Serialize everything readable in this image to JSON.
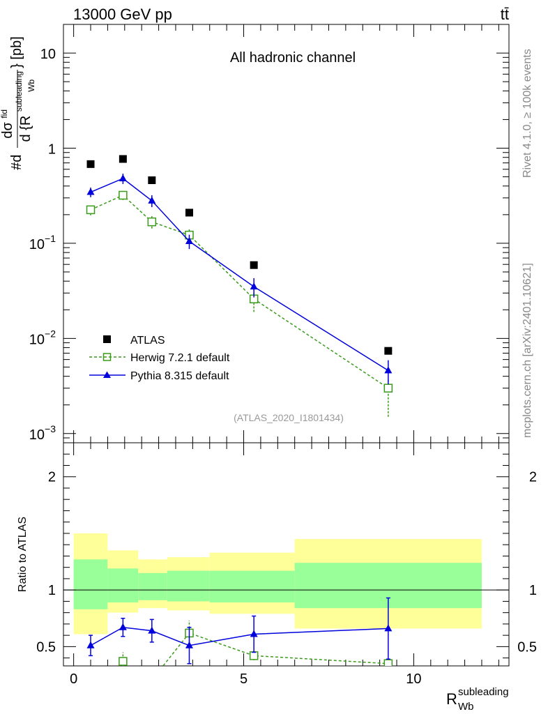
{
  "header": {
    "energy_label": "13000 GeV pp",
    "process_label": "tt̄"
  },
  "side_labels": {
    "rivet": "Rivet 4.1.0, ≥ 100k events",
    "mcplots": "mcplots.cern.ch [arXiv:2401.10621]"
  },
  "colors": {
    "data": "#000000",
    "herwig": "#3a9a1a",
    "pythia": "#0000dd",
    "band_inner": "#99ff99",
    "band_outer": "#ffff99"
  },
  "chart_data": [
    {
      "type": "scatter",
      "title": "All hadronic channel",
      "analysis_tag": "(ATLAS_2020_I1801434)",
      "ylabel": {
        "prefix": "#d",
        "num": "dσ",
        "num_sup": "fid",
        "den": "d {R",
        "den_sup": "subleading",
        "den_sub": "Wb",
        "unit": "} [pb]"
      },
      "yscale": "log",
      "ylim": [
        0.0008,
        20
      ],
      "xlim": [
        -0.3,
        12.8
      ],
      "y_tick_labels": [
        {
          "base": "10",
          "exp": "−3",
          "value": 0.001
        },
        {
          "base": "10",
          "exp": "−2",
          "value": 0.01
        },
        {
          "base": "10",
          "exp": "−1",
          "value": 0.1
        },
        {
          "base": "1",
          "exp": "",
          "value": 1
        },
        {
          "base": "10",
          "exp": "",
          "value": 10
        }
      ],
      "legend": {
        "placement": "bottom-left",
        "entries": [
          "ATLAS",
          "Herwig 7.2.1 default",
          "Pythia 8.315 default"
        ]
      },
      "series": [
        {
          "name": "ATLAS",
          "x": [
            0.5,
            1.45,
            2.3,
            3.4,
            5.3,
            9.25
          ],
          "y": [
            0.68,
            0.77,
            0.46,
            0.21,
            0.059,
            0.0074
          ]
        },
        {
          "name": "Herwig 7.2.1 default",
          "x": [
            0.5,
            1.45,
            2.3,
            3.4,
            5.3,
            9.25
          ],
          "y": [
            0.225,
            0.32,
            0.168,
            0.122,
            0.026,
            0.003
          ],
          "err_lo": [
            0.028,
            0.035,
            0.025,
            0.018,
            0.007,
            0.0015
          ],
          "err_hi": [
            0.028,
            0.035,
            0.025,
            0.018,
            0.007,
            0.0008
          ]
        },
        {
          "name": "Pythia 8.315 default",
          "x": [
            0.5,
            1.45,
            2.3,
            3.4,
            5.3,
            9.25
          ],
          "y": [
            0.345,
            0.48,
            0.28,
            0.105,
            0.035,
            0.0046
          ],
          "err_lo": [
            0.04,
            0.06,
            0.04,
            0.018,
            0.008,
            0.0013
          ],
          "err_hi": [
            0.04,
            0.06,
            0.04,
            0.018,
            0.008,
            0.0013
          ]
        }
      ]
    },
    {
      "type": "scatter",
      "ylabel": "Ratio to ATLAS",
      "xlabel": {
        "base": "R",
        "sup": "subleading",
        "sub": "Wb"
      },
      "ylim": [
        0.33,
        2.3
      ],
      "xlim": [
        -0.3,
        12.8
      ],
      "x_tick_labels": [
        {
          "label": "0",
          "value": 0
        },
        {
          "label": "5",
          "value": 5
        },
        {
          "label": "10",
          "value": 10
        }
      ],
      "y_tick_labels": [
        {
          "label": "0.5",
          "value": 0.5
        },
        {
          "label": "1",
          "value": 1
        },
        {
          "label": "2",
          "value": 2
        }
      ],
      "bands": [
        {
          "x0": 0.0,
          "x1": 1.0,
          "inner": [
            0.83,
            1.27
          ],
          "outer": [
            0.61,
            1.5
          ]
        },
        {
          "x0": 1.0,
          "x1": 1.9,
          "inner": [
            0.89,
            1.19
          ],
          "outer": [
            0.8,
            1.35
          ]
        },
        {
          "x0": 1.9,
          "x1": 2.75,
          "inner": [
            0.91,
            1.15
          ],
          "outer": [
            0.84,
            1.27
          ]
        },
        {
          "x0": 2.75,
          "x1": 4.0,
          "inner": [
            0.9,
            1.17
          ],
          "outer": [
            0.82,
            1.29
          ]
        },
        {
          "x0": 4.0,
          "x1": 6.5,
          "inner": [
            0.89,
            1.17
          ],
          "outer": [
            0.79,
            1.33
          ]
        },
        {
          "x0": 6.5,
          "x1": 12.0,
          "inner": [
            0.84,
            1.24
          ],
          "outer": [
            0.66,
            1.45
          ]
        }
      ],
      "series": [
        {
          "name": "Herwig 7.2.1 default",
          "x": [
            1.45,
            3.4,
            5.3,
            9.25
          ],
          "y": [
            0.37,
            0.62,
            0.42,
            0.35
          ],
          "err": [
            0.08,
            0.11,
            0.04,
            0.02
          ],
          "line_from": [
            1.25,
            0.28
          ],
          "line_from_end": [
            2.55,
            0.3
          ]
        },
        {
          "name": "Pythia 8.315 default",
          "x": [
            0.5,
            1.45,
            2.3,
            3.4,
            5.3,
            9.25
          ],
          "y": [
            0.51,
            0.67,
            0.64,
            0.51,
            0.61,
            0.66
          ],
          "err": [
            0.09,
            0.08,
            0.1,
            0.16,
            0.16,
            0.27
          ]
        }
      ]
    }
  ]
}
